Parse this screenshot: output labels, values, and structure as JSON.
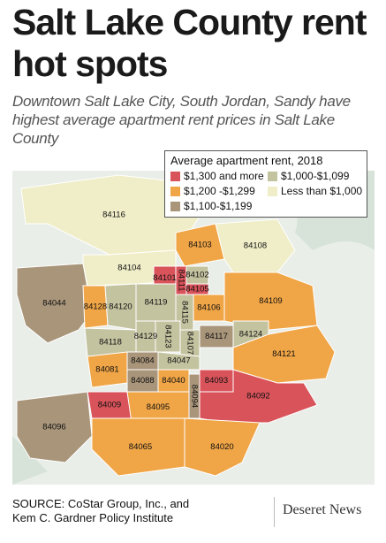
{
  "title": "Salt Lake County rent hot spots",
  "subtitle": "Downtown Salt Lake City, South Jordan, Sandy have highest average apartment rent prices in Salt Lake County",
  "legend": {
    "title": "Average apartment rent, 2018",
    "items": [
      {
        "label": "$1,300 and more",
        "color": "#d9535a"
      },
      {
        "label": "$1,000-$1,099",
        "color": "#c4c3a0"
      },
      {
        "label": "$1,200 -$1,299",
        "color": "#f0a546"
      },
      {
        "label": "Less than $1,000",
        "color": "#f0eec8"
      },
      {
        "label": "$1,100-$1,199",
        "color": "#a8957a"
      }
    ]
  },
  "zip_codes": [
    {
      "zip": "84116",
      "category": "Less than $1,000"
    },
    {
      "zip": "84103",
      "category": "$1,200 -$1,299"
    },
    {
      "zip": "84108",
      "category": "Less than $1,000"
    },
    {
      "zip": "84044",
      "category": "$1,100-$1,199"
    },
    {
      "zip": "84104",
      "category": "Less than $1,000"
    },
    {
      "zip": "84101",
      "category": "$1,300 and more"
    },
    {
      "zip": "84111",
      "category": "$1,300 and more"
    },
    {
      "zip": "84102",
      "category": "$1,000-$1,099"
    },
    {
      "zip": "84105",
      "category": "$1,300 and more"
    },
    {
      "zip": "84128",
      "category": "$1,200 -$1,299"
    },
    {
      "zip": "84120",
      "category": "$1,000-$1,099"
    },
    {
      "zip": "84119",
      "category": "$1,000-$1,099"
    },
    {
      "zip": "84115",
      "category": "$1,000-$1,099"
    },
    {
      "zip": "84106",
      "category": "$1,200 -$1,299"
    },
    {
      "zip": "84109",
      "category": "$1,200 -$1,299"
    },
    {
      "zip": "84118",
      "category": "$1,000-$1,099"
    },
    {
      "zip": "84129",
      "category": "$1,000-$1,099"
    },
    {
      "zip": "84123",
      "category": "$1,000-$1,099"
    },
    {
      "zip": "84107",
      "category": "$1,000-$1,099"
    },
    {
      "zip": "84117",
      "category": "$1,100-$1,199"
    },
    {
      "zip": "84124",
      "category": "$1,000-$1,099"
    },
    {
      "zip": "84121",
      "category": "$1,200 -$1,299"
    },
    {
      "zip": "84084",
      "category": "$1,100-$1,199"
    },
    {
      "zip": "84047",
      "category": "$1,000-$1,099"
    },
    {
      "zip": "84081",
      "category": "$1,200 -$1,299"
    },
    {
      "zip": "84088",
      "category": "$1,100-$1,199"
    },
    {
      "zip": "84040",
      "category": "$1,200 -$1,299"
    },
    {
      "zip": "84093",
      "category": "$1,300 and more"
    },
    {
      "zip": "84094",
      "category": "$1,100-$1,199"
    },
    {
      "zip": "84092",
      "category": "$1,300 and more"
    },
    {
      "zip": "84009",
      "category": "$1,300 and more"
    },
    {
      "zip": "84095",
      "category": "$1,200 -$1,299"
    },
    {
      "zip": "84096",
      "category": "$1,100-$1,199"
    },
    {
      "zip": "84065",
      "category": "$1,200 -$1,299"
    },
    {
      "zip": "84020",
      "category": "$1,200 -$1,299"
    }
  ],
  "source": {
    "line1": "SOURCE: CoStar Group, Inc., and",
    "line2": "Kem C. Gardner Policy Institute"
  },
  "brand": "Deseret News"
}
